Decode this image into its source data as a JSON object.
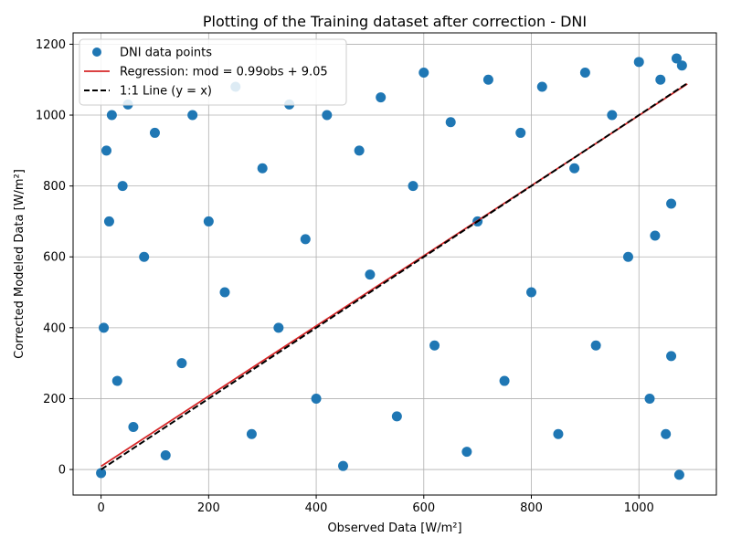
{
  "chart_data": {
    "type": "scatter",
    "title": "Plotting of the Training dataset after correction - DNI",
    "xlabel": "Observed Data [W/m²]",
    "ylabel": "Corrected Modeled Data [W/m²]",
    "xlim": [
      -52,
      1144
    ],
    "ylim": [
      -72,
      1232
    ],
    "xticks": [
      0,
      200,
      400,
      600,
      800,
      1000
    ],
    "yticks": [
      0,
      200,
      400,
      600,
      800,
      1000,
      1200
    ],
    "grid": true,
    "legend_position": "top-left",
    "series": [
      {
        "name": "DNI data points",
        "kind": "scatter",
        "color": "#1f77b4",
        "points": [
          [
            0,
            -10
          ],
          [
            5,
            400
          ],
          [
            10,
            900
          ],
          [
            15,
            700
          ],
          [
            20,
            1000
          ],
          [
            30,
            250
          ],
          [
            40,
            800
          ],
          [
            50,
            1030
          ],
          [
            60,
            120
          ],
          [
            80,
            600
          ],
          [
            100,
            950
          ],
          [
            120,
            40
          ],
          [
            150,
            300
          ],
          [
            170,
            1000
          ],
          [
            200,
            700
          ],
          [
            230,
            500
          ],
          [
            250,
            1080
          ],
          [
            280,
            100
          ],
          [
            300,
            850
          ],
          [
            330,
            400
          ],
          [
            350,
            1030
          ],
          [
            380,
            650
          ],
          [
            400,
            200
          ],
          [
            420,
            1000
          ],
          [
            450,
            10
          ],
          [
            480,
            900
          ],
          [
            500,
            550
          ],
          [
            520,
            1050
          ],
          [
            550,
            150
          ],
          [
            580,
            800
          ],
          [
            600,
            1120
          ],
          [
            620,
            350
          ],
          [
            650,
            980
          ],
          [
            680,
            50
          ],
          [
            700,
            700
          ],
          [
            720,
            1100
          ],
          [
            750,
            250
          ],
          [
            780,
            950
          ],
          [
            800,
            500
          ],
          [
            820,
            1080
          ],
          [
            850,
            100
          ],
          [
            880,
            850
          ],
          [
            900,
            1120
          ],
          [
            920,
            350
          ],
          [
            950,
            1000
          ],
          [
            980,
            600
          ],
          [
            1000,
            1150
          ],
          [
            1020,
            200
          ],
          [
            1040,
            1100
          ],
          [
            1060,
            750
          ],
          [
            1070,
            1160
          ],
          [
            1080,
            1140
          ],
          [
            1075,
            -15
          ],
          [
            1060,
            320
          ],
          [
            1050,
            100
          ],
          [
            1030,
            660
          ]
        ]
      },
      {
        "name": "Regression: mod = 0.99obs + 9.05",
        "kind": "line",
        "color": "#d62728",
        "dash": "solid",
        "x": [
          0,
          1090
        ],
        "y": [
          9.05,
          1088.15
        ]
      },
      {
        "name": "1:1 Line (y = x)",
        "kind": "line",
        "color": "#000000",
        "dash": "dashed",
        "x": [
          0,
          1090
        ],
        "y": [
          0,
          1090
        ]
      }
    ]
  }
}
